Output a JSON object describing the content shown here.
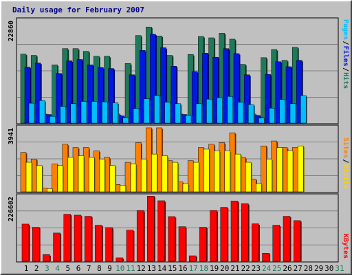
{
  "chart_data": {
    "type": "bar",
    "title": "Daily usage for February 2007",
    "days": [
      "1",
      "2",
      "3",
      "4",
      "5",
      "6",
      "7",
      "8",
      "9",
      "10",
      "11",
      "12",
      "13",
      "14",
      "15",
      "16",
      "17",
      "18",
      "19",
      "20",
      "21",
      "22",
      "23",
      "24",
      "25",
      "26",
      "27",
      "28",
      "29",
      "30",
      "31"
    ],
    "weekend_days": [
      "3",
      "4",
      "10",
      "11",
      "17",
      "18",
      "24",
      "25",
      "31"
    ],
    "panels": [
      {
        "max_label": "22860",
        "max": 22860,
        "series": [
          {
            "name": "Hits",
            "color": "#1f7a5a",
            "values": [
              15300,
              15000,
              2000,
              12900,
              16500,
              16500,
              15900,
              14800,
              14800,
              2000,
              13200,
              19400,
              21300,
              19300,
              15000,
              2000,
              15200,
              19200,
              18900,
              19900,
              18600,
              13000,
              2000,
              14500,
              16300,
              13900,
              16800,
              0,
              0,
              0,
              0
            ]
          },
          {
            "name": "Files",
            "color": "#0018e0",
            "values": [
              12400,
              13300,
              1900,
              11000,
              13800,
              14100,
              12900,
              12300,
              12100,
              1600,
              10700,
              16100,
              19700,
              16700,
              12600,
              1900,
              11400,
              15500,
              14600,
              16500,
              15400,
              10700,
              1700,
              10800,
              13600,
              12500,
              13900,
              0,
              0,
              0,
              0
            ]
          },
          {
            "name": "Pages",
            "color": "#00bfff",
            "values": [
              4400,
              5000,
              1500,
              3700,
              4300,
              4800,
              4800,
              4700,
              4500,
              1200,
              3200,
              5400,
              6100,
              4600,
              4300,
              1700,
              4300,
              5300,
              5600,
              5900,
              4600,
              4100,
              1100,
              3300,
              5200,
              4300,
              6100,
              0,
              0,
              0,
              0
            ]
          }
        ],
        "legend_colors": [
          "#00bfff",
          "#0018e0",
          "#1f7a5a"
        ]
      },
      {
        "max_label": "3941",
        "max": 3941,
        "series": [
          {
            "name": "Visits",
            "color": "#ff8000",
            "values": [
              2400,
              2000,
              220,
              1700,
              2900,
              2700,
              2700,
              2500,
              2100,
              450,
              1800,
              3000,
              3900,
              3900,
              1900,
              600,
              1900,
              2700,
              2900,
              3000,
              3600,
              2100,
              780,
              2800,
              3100,
              2700,
              2700,
              0,
              0,
              0,
              0
            ]
          },
          {
            "name": "Sites",
            "color": "#ffff00",
            "values": [
              1800,
              1600,
              190,
              1600,
              2100,
              2200,
              2100,
              2000,
              1600,
              400,
              1700,
              2000,
              2300,
              2200,
              1800,
              500,
              1800,
              2600,
              2500,
              2500,
              2300,
              1800,
              500,
              2000,
              2700,
              2500,
              2800,
              0,
              0,
              0,
              0
            ]
          }
        ],
        "legend_colors": [
          "#ff8000",
          "#ffff00",
          "#ff8000"
        ]
      },
      {
        "max_label": "226602",
        "max": 226602,
        "series": [
          {
            "name": "KBytes",
            "color": "#ff0000",
            "values": [
              129000,
              118000,
              23000,
              98000,
              163000,
              160000,
              156000,
              125000,
              117000,
              12000,
              108000,
              176000,
              226000,
              210000,
              155000,
              120000,
              19000,
              118000,
              176000,
              187000,
              209000,
              200000,
              130000,
              28000,
              125000,
              156000,
              141000,
              0,
              0,
              0,
              0
            ]
          }
        ],
        "legend_colors": [
          "#ff0000"
        ]
      }
    ],
    "legend_labels": [
      "Pages",
      "/",
      "Files",
      "/",
      "Hits",
      "Sites",
      "/",
      "Visits",
      "KBytes"
    ]
  }
}
